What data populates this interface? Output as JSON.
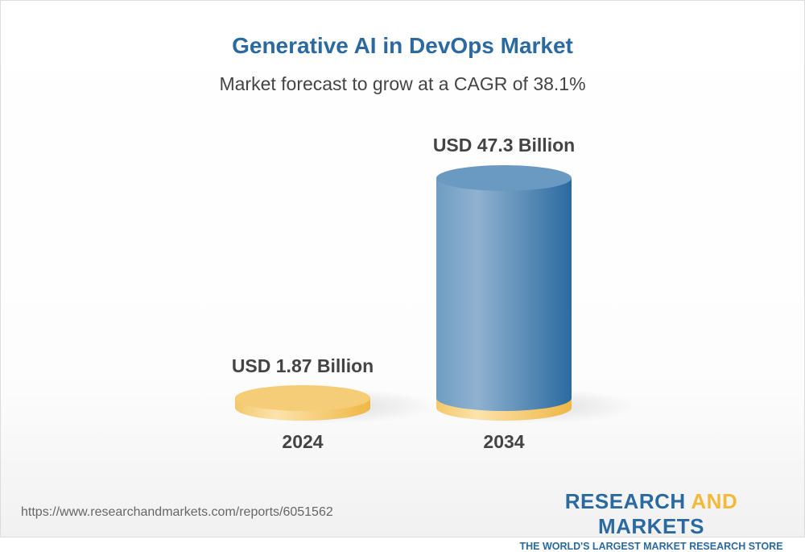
{
  "title": "Generative AI in DevOps Market",
  "subtitle": "Market forecast to grow at a CAGR of 38.1%",
  "chart_data": {
    "type": "bar",
    "style": "3d-cylinder",
    "categories": [
      "2024",
      "2034"
    ],
    "values": [
      1.87,
      47.3
    ],
    "data_labels": [
      "USD 1.87 Billion",
      "USD 47.3 Billion"
    ],
    "unit": "USD Billion",
    "colors": {
      "base": "#f5cc72",
      "bar": "#2b6aa0"
    }
  },
  "footer": {
    "url": "https://www.researchandmarkets.com/reports/6051562",
    "logo_part1": "RESEARCH ",
    "logo_part2": "AND",
    "logo_part3": " MARKETS",
    "tagline": "THE WORLD'S LARGEST MARKET RESEARCH STORE"
  }
}
